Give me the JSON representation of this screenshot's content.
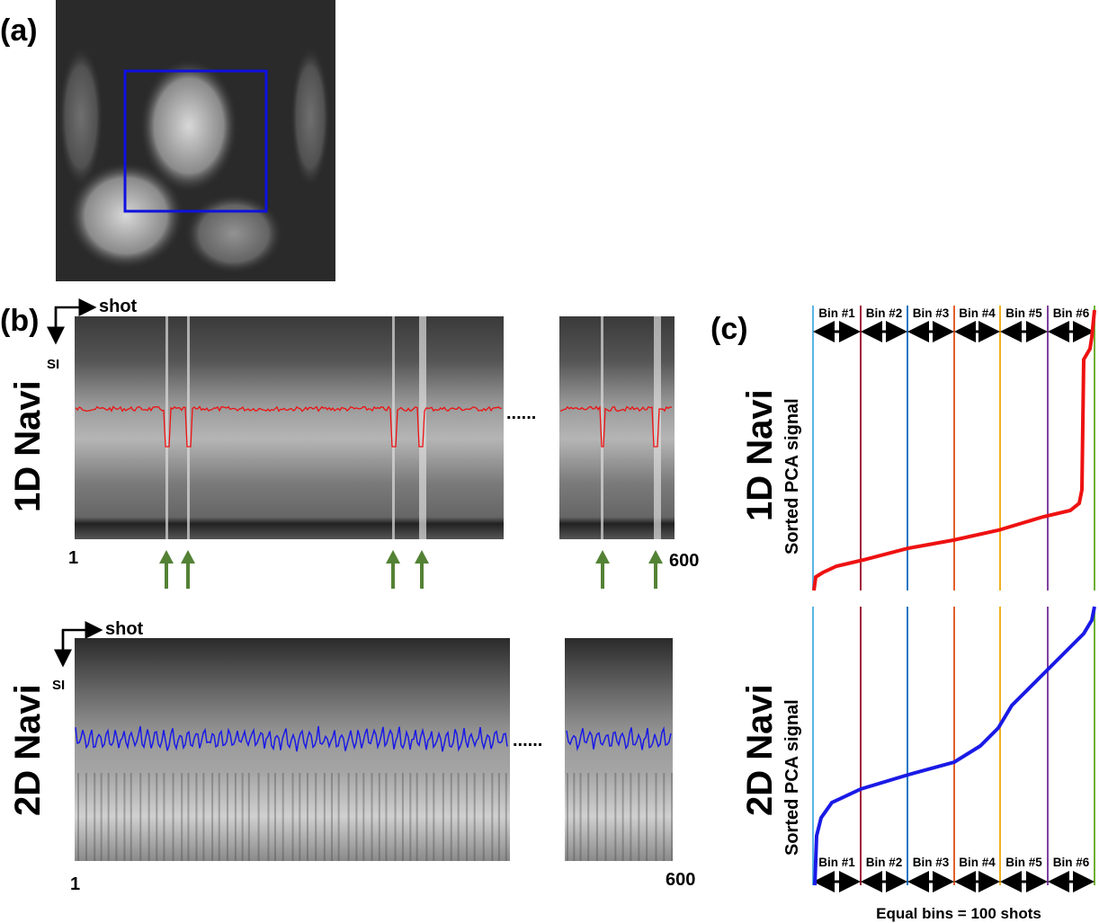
{
  "panel_a": {
    "label": "(a)"
  },
  "panel_b": {
    "label": "(b)",
    "nav1d": {
      "title": "1D Navi",
      "x_axis": "shot",
      "y_axis": "SI",
      "start": "1",
      "end": "600",
      "ellipsis": "......"
    },
    "nav2d": {
      "title": "2D Navi",
      "x_axis": "shot",
      "y_axis": "SI",
      "start": "1",
      "end": "600",
      "ellipsis": "......"
    }
  },
  "panel_c": {
    "label": "(c)",
    "top": {
      "title": "1D Navi",
      "ylabel": "Sorted PCA signal"
    },
    "bottom": {
      "title": "2D Navi",
      "ylabel": "Sorted PCA signal"
    },
    "bins": [
      "Bin #1",
      "Bin #2",
      "Bin #3",
      "Bin #4",
      "Bin #5",
      "Bin #6"
    ],
    "xlabel": "Equal bins = 100 shots"
  },
  "colors": {
    "box": "#1010e0",
    "trace1d": "#ee1111",
    "trace2d": "#1a1ae6",
    "arrow": "#548235",
    "bin_lines": [
      "#5bb5e5",
      "#a0203a",
      "#1f77c4",
      "#e0602a",
      "#f0b020",
      "#8040a0",
      "#70b030"
    ]
  }
}
